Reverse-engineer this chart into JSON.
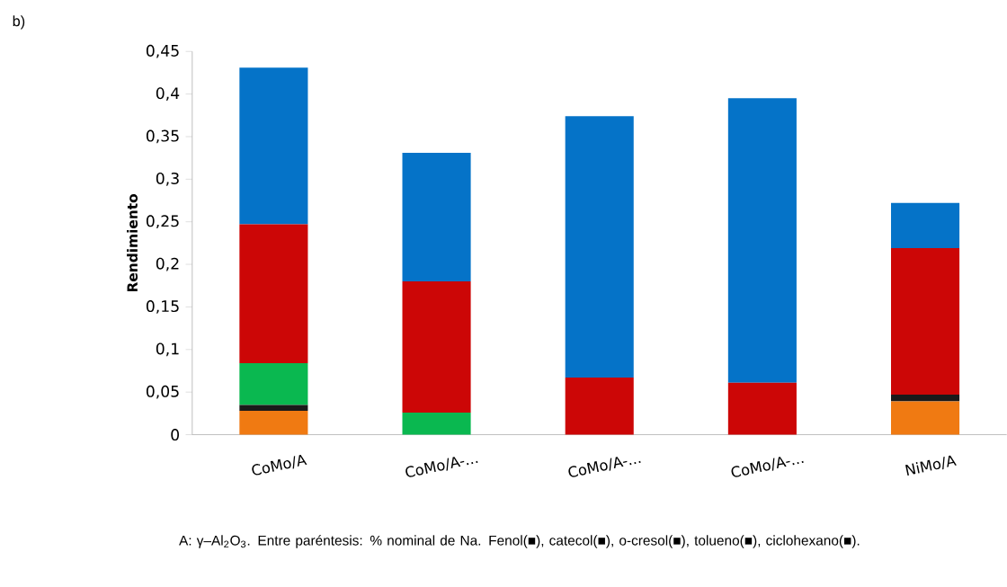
{
  "chart_data": {
    "type": "bar",
    "stacked": true,
    "ylabel": "Rendimiento",
    "categories": [
      "CoMo/A",
      "CoMo/A-...",
      "CoMo/A-...",
      "CoMo/A-...",
      "NiMo/A"
    ],
    "series": [
      {
        "color": "#f07a12",
        "values": [
          0.028,
          0,
          0,
          0,
          0.039
        ]
      },
      {
        "color": "#1a1a1a",
        "values": [
          0.007,
          0,
          0,
          0,
          0.008
        ]
      },
      {
        "color": "#0ab850",
        "values": [
          0.049,
          0.026,
          0,
          0,
          0
        ]
      },
      {
        "color": "#cc0606",
        "values": [
          0.163,
          0.154,
          0.067,
          0.061,
          0.172
        ]
      },
      {
        "color": "#0573c8",
        "values": [
          0.184,
          0.151,
          0.307,
          0.334,
          0.053
        ]
      }
    ],
    "ylim": [
      0,
      0.45
    ],
    "yticks": [
      0,
      {
        "value": 0.05,
        "label": "0,05"
      },
      {
        "value": 0.1,
        "label": "0,1"
      },
      {
        "value": 0.15,
        "label": "0,15"
      },
      {
        "value": 0.2,
        "label": "0,2"
      },
      {
        "value": 0.25,
        "label": "0,25"
      },
      {
        "value": 0.3,
        "label": "0,3"
      },
      {
        "value": 0.35,
        "label": "0,35"
      },
      {
        "value": 0.4,
        "label": "0,4"
      },
      {
        "value": 0.45,
        "label": "0,45"
      }
    ],
    "annotations": [
      "b)",
      "A: γ–Al$_{2}$O$_{3}$. Entre paréntesis: % nominal de Na. Fenol(■), catecol(■), o-cresol(■), tolueno(■), ciclohexano(■)."
    ]
  }
}
